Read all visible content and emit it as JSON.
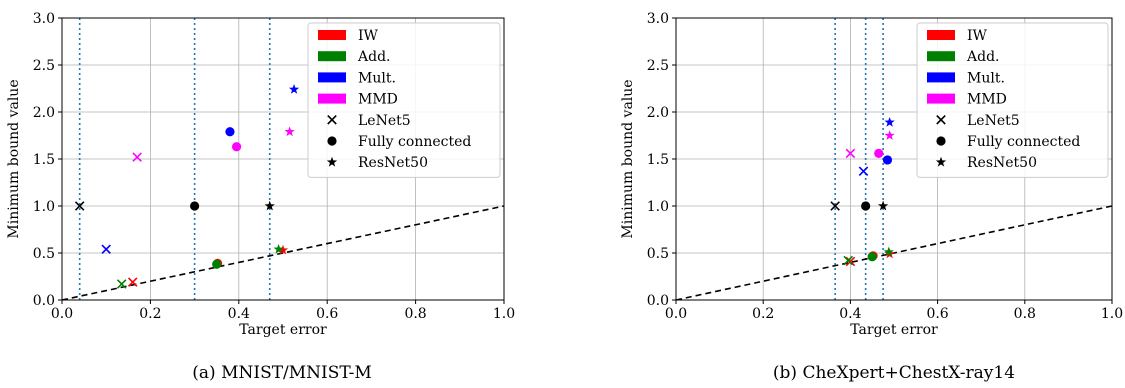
{
  "colors": {
    "IW": "#ff0000",
    "Add.": "#008000",
    "Mult.": "#0000ff",
    "MMD": "#ff00ff",
    "black": "#000000",
    "vline": "#1f77b4",
    "grid": "#b0b0b0"
  },
  "chart_data": [
    {
      "type": "scatter",
      "caption": "(a) MNIST/MNIST-M",
      "xlabel": "Target error",
      "ylabel": "Minimum bound value",
      "xlim": [
        0.0,
        1.0
      ],
      "ylim": [
        0.0,
        3.0
      ],
      "xticks": [
        "0.0",
        "0.2",
        "0.4",
        "0.6",
        "0.8",
        "1.0"
      ],
      "yticks": [
        "0.0",
        "0.5",
        "1.0",
        "1.5",
        "2.0",
        "2.5",
        "3.0"
      ],
      "grid": true,
      "legend_position": "top-right",
      "legend": [
        {
          "label": "IW",
          "kind": "patch",
          "series": "IW"
        },
        {
          "label": "Add.",
          "kind": "patch",
          "series": "Add."
        },
        {
          "label": "Mult.",
          "kind": "patch",
          "series": "Mult."
        },
        {
          "label": "MMD",
          "kind": "patch",
          "series": "MMD"
        },
        {
          "label": "LeNet5",
          "kind": "marker",
          "marker": "x"
        },
        {
          "label": "Fully connected",
          "kind": "marker",
          "marker": "o"
        },
        {
          "label": "ResNet50",
          "kind": "marker",
          "marker": "*"
        }
      ],
      "vlines": [
        0.04,
        0.3,
        0.47
      ],
      "diagonal": {
        "x": [
          0.0,
          1.0
        ],
        "y": [
          0.0,
          1.0
        ],
        "style": "dashed"
      },
      "points": [
        {
          "series": "black",
          "marker": "x",
          "x": 0.04,
          "y": 1.0
        },
        {
          "series": "black",
          "marker": "o",
          "x": 0.3,
          "y": 1.0
        },
        {
          "series": "black",
          "marker": "*",
          "x": 0.47,
          "y": 1.0
        },
        {
          "series": "IW",
          "marker": "x",
          "x": 0.16,
          "y": 0.19
        },
        {
          "series": "Add.",
          "marker": "x",
          "x": 0.135,
          "y": 0.17
        },
        {
          "series": "Mult.",
          "marker": "x",
          "x": 0.1,
          "y": 0.54
        },
        {
          "series": "MMD",
          "marker": "x",
          "x": 0.17,
          "y": 1.52
        },
        {
          "series": "IW",
          "marker": "o",
          "x": 0.352,
          "y": 0.39
        },
        {
          "series": "Add.",
          "marker": "o",
          "x": 0.35,
          "y": 0.38
        },
        {
          "series": "Mult.",
          "marker": "o",
          "x": 0.38,
          "y": 1.79
        },
        {
          "series": "MMD",
          "marker": "o",
          "x": 0.395,
          "y": 1.63
        },
        {
          "series": "IW",
          "marker": "*",
          "x": 0.5,
          "y": 0.53
        },
        {
          "series": "Add.",
          "marker": "*",
          "x": 0.49,
          "y": 0.54
        },
        {
          "series": "Mult.",
          "marker": "*",
          "x": 0.525,
          "y": 2.24
        },
        {
          "series": "MMD",
          "marker": "*",
          "x": 0.515,
          "y": 1.79
        }
      ]
    },
    {
      "type": "scatter",
      "caption": "(b) CheXpert+ChestX-ray14",
      "xlabel": "Target error",
      "ylabel": "Minimum bound value",
      "xlim": [
        0.0,
        1.0
      ],
      "ylim": [
        0.0,
        3.0
      ],
      "xticks": [
        "0.0",
        "0.2",
        "0.4",
        "0.6",
        "0.8",
        "1.0"
      ],
      "yticks": [
        "0.0",
        "0.5",
        "1.0",
        "1.5",
        "2.0",
        "2.5",
        "3.0"
      ],
      "grid": true,
      "legend_position": "top-right",
      "legend": [
        {
          "label": "IW",
          "kind": "patch",
          "series": "IW"
        },
        {
          "label": "Add.",
          "kind": "patch",
          "series": "Add."
        },
        {
          "label": "Mult.",
          "kind": "patch",
          "series": "Mult."
        },
        {
          "label": "MMD",
          "kind": "patch",
          "series": "MMD"
        },
        {
          "label": "LeNet5",
          "kind": "marker",
          "marker": "x"
        },
        {
          "label": "Fully connected",
          "kind": "marker",
          "marker": "o"
        },
        {
          "label": "ResNet50",
          "kind": "marker",
          "marker": "*"
        }
      ],
      "vlines": [
        0.365,
        0.435,
        0.475
      ],
      "diagonal": {
        "x": [
          0.0,
          1.0
        ],
        "y": [
          0.0,
          1.0
        ],
        "style": "dashed"
      },
      "points": [
        {
          "series": "black",
          "marker": "x",
          "x": 0.365,
          "y": 1.0
        },
        {
          "series": "black",
          "marker": "o",
          "x": 0.435,
          "y": 1.0
        },
        {
          "series": "black",
          "marker": "*",
          "x": 0.475,
          "y": 1.0
        },
        {
          "series": "IW",
          "marker": "x",
          "x": 0.4,
          "y": 0.41
        },
        {
          "series": "Add.",
          "marker": "x",
          "x": 0.395,
          "y": 0.42
        },
        {
          "series": "Mult.",
          "marker": "x",
          "x": 0.43,
          "y": 1.37
        },
        {
          "series": "MMD",
          "marker": "x",
          "x": 0.4,
          "y": 1.56
        },
        {
          "series": "IW",
          "marker": "o",
          "x": 0.452,
          "y": 0.47
        },
        {
          "series": "Add.",
          "marker": "o",
          "x": 0.45,
          "y": 0.46
        },
        {
          "series": "Mult.",
          "marker": "o",
          "x": 0.485,
          "y": 1.49
        },
        {
          "series": "MMD",
          "marker": "o",
          "x": 0.465,
          "y": 1.56
        },
        {
          "series": "IW",
          "marker": "*",
          "x": 0.49,
          "y": 0.49
        },
        {
          "series": "Add.",
          "marker": "*",
          "x": 0.488,
          "y": 0.51
        },
        {
          "series": "Mult.",
          "marker": "*",
          "x": 0.49,
          "y": 1.89
        },
        {
          "series": "MMD",
          "marker": "*",
          "x": 0.49,
          "y": 1.75
        }
      ]
    }
  ]
}
